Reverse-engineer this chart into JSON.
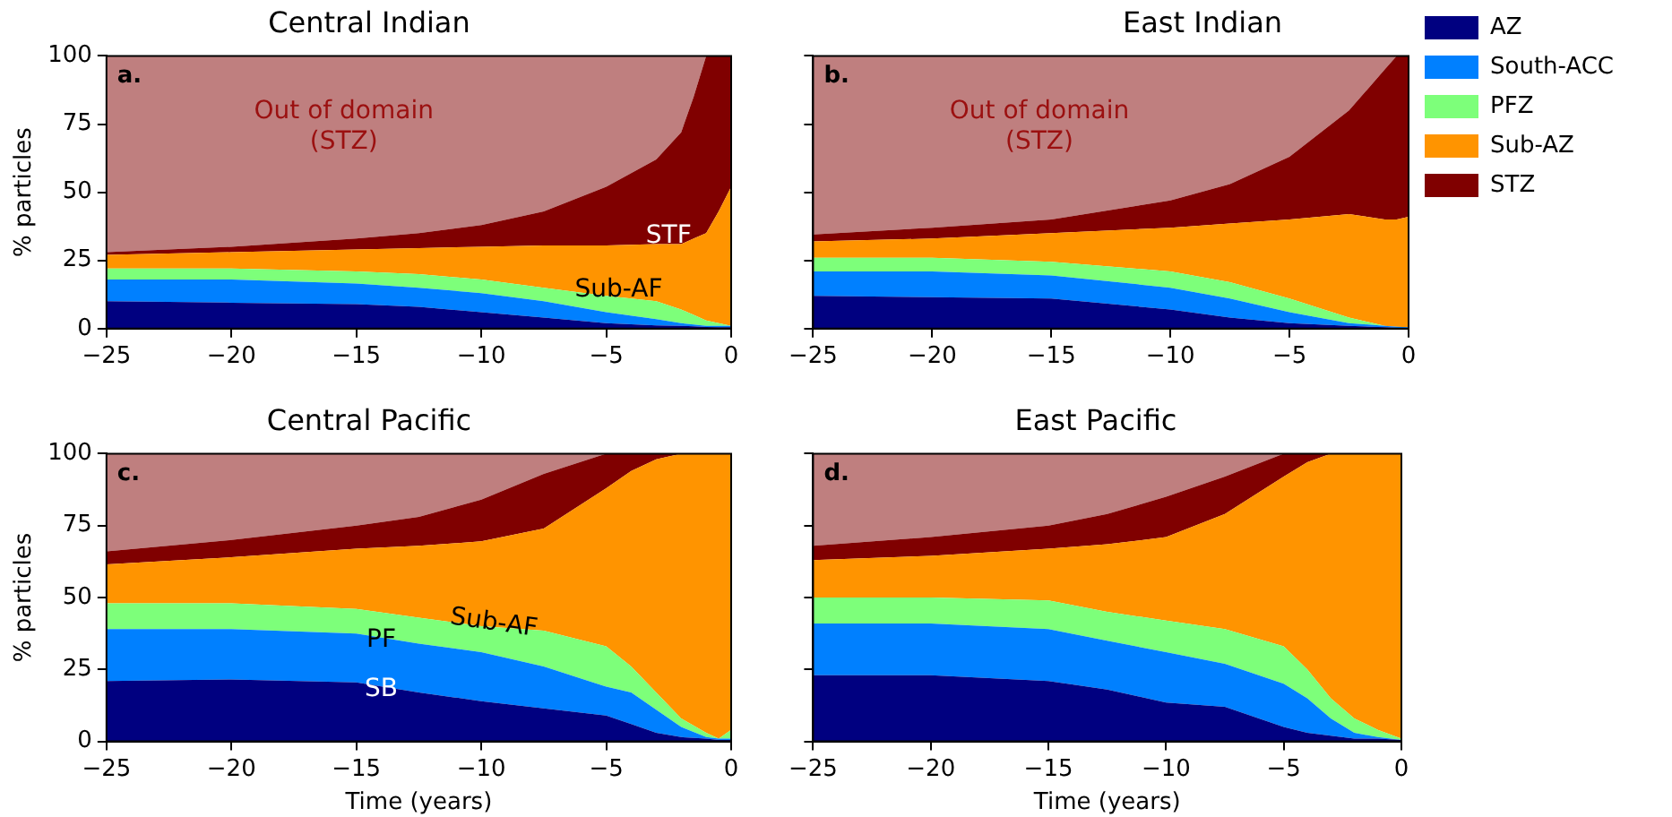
{
  "chart_data": [
    {
      "type": "area",
      "title": "Central Indian",
      "ylabel": "% particles",
      "stacked": true,
      "legend": false,
      "grid": false,
      "xlim": [
        -25,
        0
      ],
      "xticks": [
        -25,
        -20,
        -15,
        -10,
        -5,
        0
      ],
      "ylim": [
        0,
        100
      ],
      "yticks": [
        0,
        25,
        50,
        75,
        100
      ],
      "x": [
        -25,
        -20,
        -15,
        -12.5,
        -10,
        -7.5,
        -5,
        -3,
        -2,
        -1.5,
        -1,
        -0.5,
        0
      ],
      "series": [
        {
          "color": "#000080",
          "values": [
            10,
            9.5,
            9,
            8,
            6,
            4,
            2,
            1.2,
            1,
            0.8,
            0.6,
            0.5,
            0.5
          ]
        },
        {
          "color": "#0080ff",
          "values": [
            8,
            8.5,
            7.5,
            7,
            7,
            6,
            4,
            2.3,
            1,
            0.7,
            0.4,
            0.5,
            0.5
          ]
        },
        {
          "color": "#7dff7a",
          "values": [
            4,
            4,
            4.5,
            5,
            5,
            5,
            6,
            6.5,
            5,
            3.5,
            2,
            1,
            0
          ]
        },
        {
          "color": "#ff9400",
          "values": [
            5,
            6,
            8,
            9.5,
            12,
            15.5,
            18.5,
            21,
            24,
            28,
            32,
            41,
            51
          ]
        },
        {
          "color": "#800000",
          "values": [
            1,
            2,
            4,
            5.5,
            8,
            12.5,
            21.5,
            31,
            41,
            52,
            65,
            57,
            48
          ]
        },
        {
          "color": "#bf7f7f",
          "values": [
            72,
            70,
            67,
            65,
            62,
            57,
            48,
            38,
            28,
            15,
            0,
            0,
            0
          ]
        }
      ],
      "annotations": [
        "a.",
        "Out of domain\n(STZ)",
        "STF",
        {
          "text": "Sub-AF",
          "x": -4.5,
          "y": 14
        }
      ]
    },
    {
      "type": "area",
      "title": "East Indian",
      "stacked": true,
      "legend": "right",
      "grid": false,
      "tick_labels": "x",
      "xlim": [
        -25,
        0
      ],
      "xticks": [
        -25,
        -20,
        -15,
        -10,
        -5,
        0
      ],
      "ylim": [
        0,
        100
      ],
      "yticks": [
        0,
        25,
        50,
        75,
        100
      ],
      "x": [
        -25,
        -20,
        -15,
        -10,
        -7.5,
        -5,
        -2.5,
        -1,
        -0.5,
        0
      ],
      "series": [
        {
          "name": "AZ",
          "color": "#000080",
          "values": [
            12,
            11.5,
            11,
            7,
            4,
            2,
            1,
            0.5,
            0.3,
            0
          ]
        },
        {
          "name": "South-ACC",
          "color": "#0080ff",
          "values": [
            9,
            9.5,
            8.5,
            8,
            7,
            4,
            1,
            0.5,
            0.4,
            0.5
          ]
        },
        {
          "name": "PFZ",
          "color": "#7dff7a",
          "values": [
            5,
            5,
            5,
            6,
            6,
            5,
            2,
            0,
            0,
            0
          ]
        },
        {
          "name": "Sub-AZ",
          "color": "#ff9400",
          "values": [
            6,
            7,
            10.5,
            16,
            21.5,
            29,
            38,
            39,
            39.3,
            40.5
          ]
        },
        {
          "name": "STZ",
          "color": "#800000",
          "values": [
            2.5,
            4,
            5,
            10,
            14.5,
            23,
            38,
            55,
            60,
            59
          ]
        },
        {
          "color": "#bf7f7f",
          "values": [
            65.5,
            63,
            60,
            53,
            47,
            37,
            20,
            5,
            0,
            0
          ]
        }
      ],
      "annotations": [
        "b.",
        "Out of domain\n(STZ)"
      ]
    },
    {
      "type": "area",
      "title": "Central Pacific",
      "xlabel": "Time (years)",
      "ylabel": "% particles",
      "stacked": true,
      "legend": false,
      "grid": false,
      "xlim": [
        -25,
        0
      ],
      "xticks": [
        -25,
        -20,
        -15,
        -10,
        -5,
        0
      ],
      "ylim": [
        0,
        100
      ],
      "yticks": [
        0,
        25,
        50,
        75,
        100
      ],
      "x": [
        -25,
        -20,
        -15,
        -12.5,
        -10,
        -7.5,
        -5,
        -4,
        -3,
        -2,
        -1,
        -0.5,
        0
      ],
      "series": [
        {
          "color": "#000080",
          "values": [
            21,
            21.5,
            20.5,
            17,
            14,
            11.5,
            9,
            6,
            3,
            1.5,
            1,
            0.5,
            0.5
          ]
        },
        {
          "color": "#0080ff",
          "values": [
            18,
            17.5,
            17,
            17,
            17,
            14.5,
            10,
            11,
            8,
            3.5,
            0.5,
            0.5,
            0.5
          ]
        },
        {
          "color": "#7dff7a",
          "values": [
            9,
            9,
            8.5,
            9,
            9,
            12.5,
            14,
            9,
            6,
            3,
            1.5,
            0,
            3
          ]
        },
        {
          "color": "#ff9400",
          "values": [
            13.5,
            16,
            21,
            25,
            29.5,
            35.5,
            55,
            68,
            81,
            92,
            97,
            99,
            96
          ]
        },
        {
          "color": "#800000",
          "values": [
            4.5,
            6,
            8,
            10,
            14.5,
            19,
            12,
            6,
            2,
            0,
            0,
            0,
            0
          ]
        },
        {
          "color": "#bf7f7f",
          "values": [
            34,
            30,
            25,
            22,
            16,
            7,
            0,
            0,
            0,
            0,
            0,
            0,
            0
          ]
        }
      ],
      "annotations": [
        "c.",
        {
          "text": "PF",
          "x": -14,
          "y": 35
        },
        {
          "text": "SB",
          "x": -14,
          "y": 18
        },
        {
          "text": "Sub-AF",
          "x": -9.5,
          "y": 41
        }
      ]
    },
    {
      "type": "area",
      "title": "East Pacific",
      "xlabel": "Time (years)",
      "stacked": true,
      "legend": false,
      "grid": false,
      "tick_labels": "x",
      "xlim": [
        -25,
        0
      ],
      "xticks": [
        -25,
        -20,
        -15,
        -10,
        -5,
        0
      ],
      "ylim": [
        0,
        100
      ],
      "yticks": [
        0,
        25,
        50,
        75,
        100
      ],
      "x": [
        -25,
        -20,
        -15,
        -12.5,
        -10,
        -7.5,
        -5,
        -4,
        -3,
        -2,
        -1,
        0
      ],
      "series": [
        {
          "color": "#000080",
          "values": [
            23,
            23,
            21,
            18,
            13.5,
            12,
            5,
            3,
            2,
            1,
            1,
            0.5
          ]
        },
        {
          "color": "#0080ff",
          "values": [
            18,
            18,
            18,
            17,
            17.5,
            15,
            15,
            12,
            6,
            2,
            0.5,
            0
          ]
        },
        {
          "color": "#7dff7a",
          "values": [
            9,
            9,
            10,
            10,
            11,
            12,
            13,
            10,
            7,
            5,
            2.5,
            0.5
          ]
        },
        {
          "color": "#ff9400",
          "values": [
            13,
            14.5,
            18,
            23.5,
            29,
            40,
            59,
            72,
            85,
            92,
            96,
            99
          ]
        },
        {
          "color": "#800000",
          "values": [
            5,
            6.5,
            8,
            10.5,
            14,
            13,
            8,
            3,
            0,
            0,
            0,
            0
          ]
        },
        {
          "color": "#bf7f7f",
          "values": [
            32,
            29,
            25,
            21,
            15,
            8,
            0,
            0,
            0,
            0,
            0,
            0
          ]
        }
      ],
      "annotations": [
        "d."
      ]
    }
  ]
}
